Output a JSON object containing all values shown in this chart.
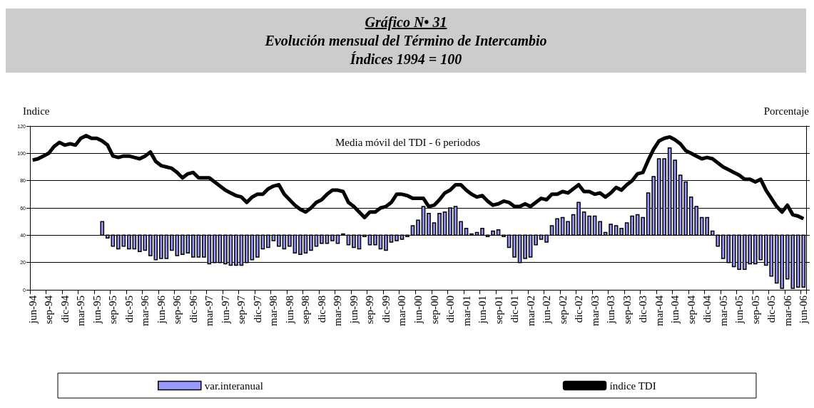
{
  "chart_data": {
    "type": "line",
    "title": "Gráfico N• 31",
    "subtitle": "Evolución mensual del Término de Intercambio\nÍndices 1994 = 100",
    "ylabel": "Indice",
    "y2label": "Porcentaje",
    "annotations": [
      "Media móvil del TDI - 6 periodos"
    ],
    "categories": [
      "jun-94",
      null,
      null,
      "sep-94",
      null,
      null,
      "dic-94",
      null,
      null,
      "mar-95",
      null,
      null,
      "jun-95",
      null,
      null,
      "sep-95",
      null,
      null,
      "dic-95",
      null,
      null,
      "mar-96",
      null,
      null,
      "jun-96",
      null,
      null,
      "sep-96",
      null,
      null,
      "dic-96",
      null,
      null,
      "mar-97",
      null,
      null,
      "jun-97",
      null,
      null,
      "sep-97",
      null,
      null,
      "dic-97",
      null,
      null,
      "mar-98",
      null,
      null,
      "jun-98",
      null,
      null,
      "sep-98",
      null,
      null,
      "dic-98",
      null,
      null,
      "mar-99",
      null,
      null,
      "jun-99",
      null,
      null,
      "sep-99",
      null,
      null,
      "dic-99",
      null,
      null,
      "mar-00",
      null,
      null,
      "jun-00",
      null,
      null,
      "sep-00",
      null,
      null,
      "dic-00",
      null,
      null,
      "mar-01",
      null,
      null,
      "jun-01",
      null,
      null,
      "sep-01",
      null,
      null,
      "dic-01",
      null,
      null,
      "mar-02",
      null,
      null,
      "jun-02",
      null,
      null,
      "sep-02",
      null,
      null,
      "dic-02",
      null,
      null,
      "mar-03",
      null,
      null,
      "jun-03",
      null,
      null,
      "sep-03",
      null,
      null,
      "dic-03",
      null,
      null,
      "mar-04",
      null,
      null,
      "jun-04",
      null,
      null,
      "sep-04",
      null,
      null,
      "dic-04",
      null,
      null,
      "mar-05",
      null,
      null,
      "jun-05",
      null,
      null,
      "sep-05",
      null,
      null,
      "dic-05",
      null,
      null,
      "mar-06",
      null,
      null,
      "jun-06"
    ],
    "series": [
      {
        "name": "var.interanual",
        "type": "bar",
        "color": "#9999ff",
        "base": [
          null,
          null,
          null,
          null,
          null,
          null,
          null,
          null,
          null,
          null,
          null,
          null,
          null,
          40,
          40,
          40,
          40,
          40,
          40,
          40,
          40,
          40,
          40,
          40,
          40,
          40,
          40,
          40,
          40,
          40,
          40,
          40,
          40,
          40,
          40,
          40,
          40,
          40,
          40,
          40,
          40,
          40,
          40,
          40,
          40,
          40,
          40,
          40,
          40,
          40,
          40,
          40,
          40,
          40,
          40,
          40,
          40,
          40,
          40,
          40,
          40,
          40,
          40,
          40,
          40,
          40,
          40,
          40,
          40,
          40,
          40,
          40,
          40,
          40,
          40,
          40,
          40,
          40,
          40,
          40,
          40,
          40,
          40,
          40,
          40,
          40,
          40,
          40,
          40,
          40,
          40,
          40,
          40,
          40,
          40,
          40,
          40,
          40,
          40,
          40,
          40,
          40,
          40,
          40,
          40,
          40,
          40,
          40,
          40,
          40,
          40,
          40,
          40,
          40,
          40,
          40,
          40,
          40,
          40,
          40,
          40,
          40,
          40,
          40,
          40,
          40,
          40,
          40,
          40,
          40,
          40,
          40,
          40,
          40,
          40,
          40,
          40,
          40,
          40,
          40,
          40,
          40,
          40,
          40,
          40
        ],
        "values": [
          null,
          null,
          null,
          null,
          null,
          null,
          null,
          null,
          null,
          null,
          null,
          null,
          null,
          10,
          -2,
          -8,
          -10,
          -8,
          -10,
          -10,
          -12,
          -11,
          -15,
          -18,
          -17,
          -17,
          -11,
          -15,
          -14,
          -13,
          -16,
          -16,
          -16,
          -21,
          -20,
          -20,
          -21,
          -22,
          -22,
          -22,
          -20,
          -18,
          -16,
          -10,
          -9,
          -4,
          -8,
          -10,
          -8,
          -13,
          -14,
          -13,
          -11,
          -8,
          -6,
          -6,
          -4,
          -6,
          1,
          -7,
          -9,
          -10,
          -1,
          -7,
          -7,
          -10,
          -11,
          -5,
          -4,
          -3,
          -1,
          7,
          11,
          21,
          16,
          9,
          16,
          17,
          20,
          21,
          10,
          5,
          1,
          2,
          5,
          -1,
          3,
          4,
          -1,
          -9,
          -16,
          -20,
          -17,
          -16,
          -7,
          -3,
          -5,
          7,
          12,
          13,
          10,
          15,
          24,
          17,
          14,
          14,
          10,
          2,
          8,
          7,
          5,
          9,
          14,
          15,
          13,
          31,
          43,
          56,
          56,
          64,
          55,
          44,
          39,
          28,
          21,
          13,
          13,
          3,
          -8,
          -17,
          -20,
          -23,
          -25,
          -25,
          -21,
          -21,
          -18,
          -22,
          -30,
          -35,
          -39,
          -32,
          -39,
          -38,
          -38
        ]
      },
      {
        "name": "índice TDI",
        "color": "#000000",
        "values": [
          95,
          96,
          98,
          100,
          105,
          108,
          106,
          107,
          106,
          111,
          113,
          111,
          111,
          109,
          106,
          98,
          97,
          98,
          98,
          97,
          96,
          98,
          101,
          94,
          91,
          90,
          89,
          86,
          82,
          85,
          86,
          82,
          82,
          82,
          79,
          76,
          73,
          71,
          69,
          68,
          64,
          68,
          70,
          70,
          74,
          76,
          77,
          70,
          66,
          62,
          59,
          57,
          60,
          64,
          66,
          70,
          73,
          73,
          72,
          64,
          61,
          57,
          53,
          57,
          57,
          60,
          61,
          64,
          70,
          70,
          69,
          67,
          67,
          67,
          61,
          62,
          66,
          71,
          73,
          77,
          77,
          73,
          70,
          68,
          69,
          65,
          62,
          63,
          65,
          64,
          61,
          61,
          63,
          61,
          64,
          67,
          66,
          70,
          70,
          72,
          71,
          74,
          77,
          72,
          72,
          70,
          71,
          68,
          71,
          75,
          73,
          77,
          80,
          85,
          86,
          95,
          103,
          109,
          111,
          112,
          110,
          107,
          102,
          100,
          98,
          96,
          97,
          96,
          93,
          90,
          88,
          86,
          84,
          81,
          81,
          79,
          81,
          73,
          67,
          61,
          57,
          62,
          55,
          54,
          52
        ]
      }
    ],
    "ylim": [
      0,
      120
    ],
    "yticks": [
      0,
      20,
      40,
      60,
      80,
      100,
      120
    ],
    "grid": "y",
    "legend": "bottom",
    "marker": "none",
    "line_style": "solid"
  }
}
